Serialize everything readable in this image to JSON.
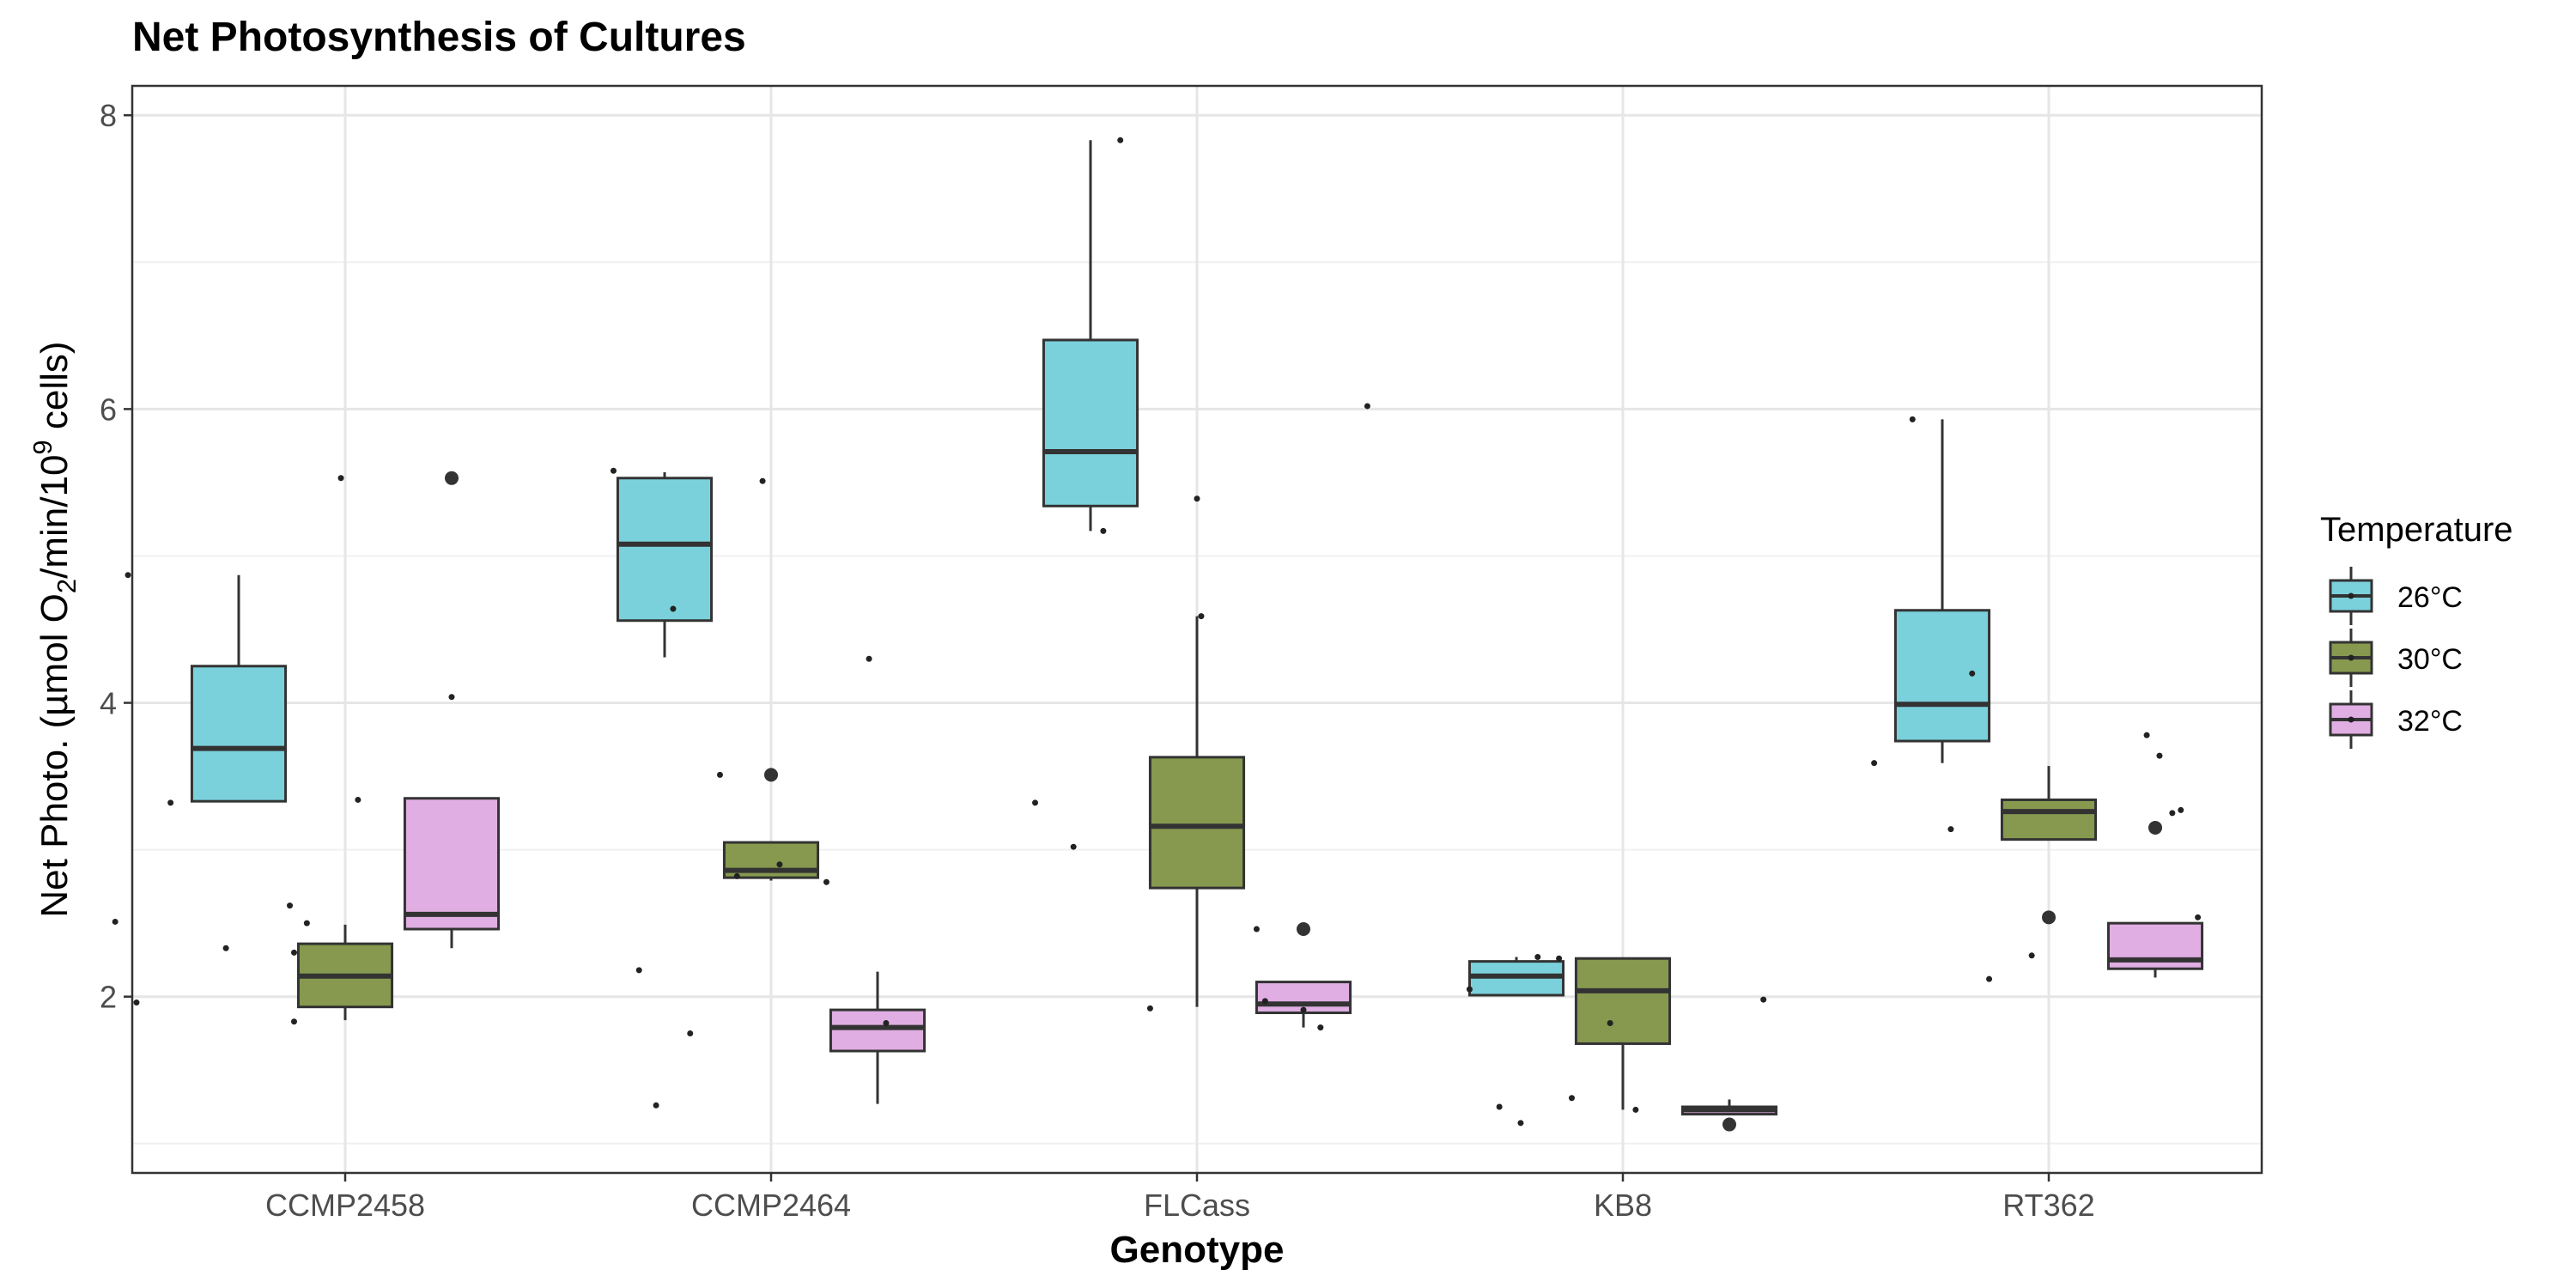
{
  "chart_data": {
    "type": "box",
    "title": "Net Photosynthesis of Cultures",
    "xlabel": "Genotype",
    "ylabel": {
      "prefix": "Net Photo. (µmol O",
      "sub": "2",
      "middle": "/min/10",
      "sup": "9",
      "suffix": " cells)"
    },
    "ylim": [
      0.8,
      8.2
    ],
    "yticks": [
      2,
      4,
      6,
      8
    ],
    "grid": true,
    "legend": {
      "title": "Temperature",
      "position": "right"
    },
    "categories": [
      "CCMP2458",
      "CCMP2464",
      "FLCass",
      "KB8",
      "RT362"
    ],
    "series": [
      {
        "name": "26°C",
        "color": "#7ad1dc",
        "boxes": [
          {
            "q1": 3.33,
            "median": 3.69,
            "q3": 4.25,
            "whisker_low": 3.33,
            "whisker_high": 4.87,
            "outliers": []
          },
          {
            "q1": 4.56,
            "median": 5.08,
            "q3": 5.53,
            "whisker_low": 4.31,
            "whisker_high": 5.57,
            "outliers": []
          },
          {
            "q1": 5.34,
            "median": 5.71,
            "q3": 6.47,
            "whisker_low": 5.17,
            "whisker_high": 7.83,
            "outliers": []
          },
          {
            "q1": 2.01,
            "median": 2.14,
            "q3": 2.24,
            "whisker_low": 2.01,
            "whisker_high": 2.27,
            "outliers": []
          },
          {
            "q1": 3.74,
            "median": 3.99,
            "q3": 4.63,
            "whisker_low": 3.59,
            "whisker_high": 5.93,
            "outliers": []
          }
        ]
      },
      {
        "name": "30°C",
        "color": "#86994f",
        "boxes": [
          {
            "q1": 1.93,
            "median": 2.14,
            "q3": 2.36,
            "whisker_low": 1.84,
            "whisker_high": 2.49,
            "outliers": []
          },
          {
            "q1": 2.81,
            "median": 2.86,
            "q3": 3.05,
            "whisker_low": 2.79,
            "whisker_high": 3.05,
            "outliers": [
              3.51
            ]
          },
          {
            "q1": 2.74,
            "median": 3.16,
            "q3": 3.63,
            "whisker_low": 1.93,
            "whisker_high": 4.59,
            "outliers": []
          },
          {
            "q1": 1.68,
            "median": 2.04,
            "q3": 2.26,
            "whisker_low": 1.23,
            "whisker_high": 2.26,
            "outliers": []
          },
          {
            "q1": 3.07,
            "median": 3.26,
            "q3": 3.34,
            "whisker_low": 3.07,
            "whisker_high": 3.57,
            "outliers": [
              2.54
            ]
          }
        ]
      },
      {
        "name": "32°C",
        "color": "#e0aee2",
        "boxes": [
          {
            "q1": 2.46,
            "median": 2.56,
            "q3": 3.35,
            "whisker_low": 2.33,
            "whisker_high": 3.35,
            "outliers": [
              5.53
            ]
          },
          {
            "q1": 1.63,
            "median": 1.79,
            "q3": 1.91,
            "whisker_low": 1.27,
            "whisker_high": 2.17,
            "outliers": []
          },
          {
            "q1": 1.89,
            "median": 1.95,
            "q3": 2.1,
            "whisker_low": 1.79,
            "whisker_high": 2.1,
            "outliers": [
              2.46
            ]
          },
          {
            "q1": 1.2,
            "median": 1.23,
            "q3": 1.25,
            "whisker_low": 1.2,
            "whisker_high": 1.3,
            "outliers": [
              1.13
            ]
          },
          {
            "q1": 2.19,
            "median": 2.25,
            "q3": 2.5,
            "whisker_low": 2.13,
            "whisker_high": 2.5,
            "outliers": [
              3.15
            ]
          }
        ]
      }
    ],
    "jitter_points": [
      {
        "x": 0.49,
        "y": 4.87
      },
      {
        "x": 0.46,
        "y": 2.51
      },
      {
        "x": 0.59,
        "y": 3.32
      },
      {
        "x": 0.51,
        "y": 1.96
      },
      {
        "x": 0.72,
        "y": 2.33
      },
      {
        "x": 0.87,
        "y": 2.62
      },
      {
        "x": 0.88,
        "y": 2.3
      },
      {
        "x": 0.88,
        "y": 1.83
      },
      {
        "x": 0.91,
        "y": 2.5
      },
      {
        "x": 0.99,
        "y": 5.53
      },
      {
        "x": 1.03,
        "y": 3.34
      },
      {
        "x": 1.25,
        "y": 4.04
      },
      {
        "x": 1.63,
        "y": 5.58
      },
      {
        "x": 1.69,
        "y": 2.18
      },
      {
        "x": 1.73,
        "y": 1.26
      },
      {
        "x": 1.77,
        "y": 4.64
      },
      {
        "x": 1.81,
        "y": 1.75
      },
      {
        "x": 1.88,
        "y": 3.51
      },
      {
        "x": 1.92,
        "y": 2.82
      },
      {
        "x": 1.98,
        "y": 5.51
      },
      {
        "x": 2.02,
        "y": 2.9
      },
      {
        "x": 2.13,
        "y": 2.78
      },
      {
        "x": 2.23,
        "y": 4.3
      },
      {
        "x": 2.27,
        "y": 1.82
      },
      {
        "x": 2.62,
        "y": 3.32
      },
      {
        "x": 2.71,
        "y": 3.02
      },
      {
        "x": 2.78,
        "y": 5.17
      },
      {
        "x": 2.82,
        "y": 7.83
      },
      {
        "x": 2.89,
        "y": 1.92
      },
      {
        "x": 3.0,
        "y": 5.39
      },
      {
        "x": 3.01,
        "y": 4.59
      },
      {
        "x": 3.14,
        "y": 2.46
      },
      {
        "x": 3.16,
        "y": 1.97
      },
      {
        "x": 3.25,
        "y": 1.91
      },
      {
        "x": 3.29,
        "y": 1.79
      },
      {
        "x": 3.4,
        "y": 6.02
      },
      {
        "x": 3.64,
        "y": 2.05
      },
      {
        "x": 3.71,
        "y": 1.25
      },
      {
        "x": 3.76,
        "y": 1.14
      },
      {
        "x": 3.8,
        "y": 2.27
      },
      {
        "x": 3.85,
        "y": 2.26
      },
      {
        "x": 3.88,
        "y": 1.31
      },
      {
        "x": 3.97,
        "y": 1.82
      },
      {
        "x": 4.03,
        "y": 1.23
      },
      {
        "x": 4.33,
        "y": 1.98
      },
      {
        "x": 4.59,
        "y": 3.59
      },
      {
        "x": 4.68,
        "y": 5.93
      },
      {
        "x": 4.77,
        "y": 3.14
      },
      {
        "x": 4.82,
        "y": 4.2
      },
      {
        "x": 4.86,
        "y": 2.12
      },
      {
        "x": 4.96,
        "y": 2.28
      },
      {
        "x": 5.23,
        "y": 3.78
      },
      {
        "x": 5.26,
        "y": 3.64
      },
      {
        "x": 5.29,
        "y": 3.25
      },
      {
        "x": 5.31,
        "y": 3.27
      },
      {
        "x": 5.35,
        "y": 2.54
      }
    ]
  }
}
